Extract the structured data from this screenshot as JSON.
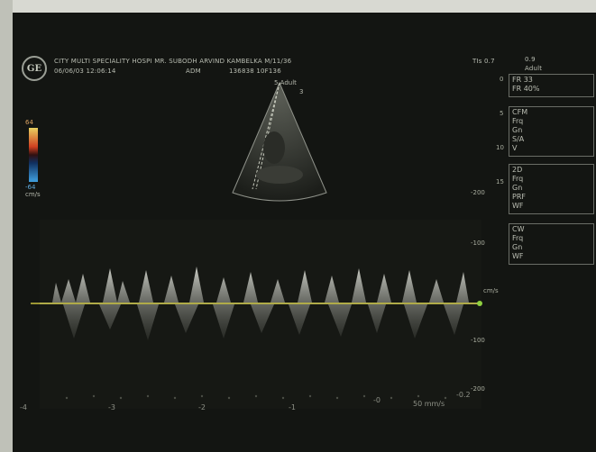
{
  "header": {
    "line1": "CITY MULTI SPECIALITY HOSPI  MR. SUBODH ARVIND KAMBELKA  M/11/36",
    "line2": "06/06/03  12:06:14",
    "line3": "ADM",
    "line4": "136838  10F136",
    "tis_label": "TIs 0.7",
    "mi_label": "0.9",
    "cardiac_label": "Adult"
  },
  "logo": {
    "text": "GE"
  },
  "probe": {
    "label": "5 Adult",
    "sublabel": "3"
  },
  "color_scale": {
    "top": "64",
    "bottom": "-64",
    "unit": "cm/s"
  },
  "depth_ticks": [
    "0",
    "5",
    "10",
    "15"
  ],
  "side_panel": {
    "box1": {
      "title": "FR",
      "rows": [
        "FR 33",
        "FR 40%"
      ]
    },
    "box2": {
      "title": "CFM",
      "rows": [
        "CFM",
        "Frq",
        "Gn",
        "S/A",
        "V"
      ]
    },
    "box3": {
      "title": "2D",
      "rows": [
        "2D",
        "Frq",
        "Gn",
        "PRF",
        "WF"
      ]
    },
    "box4": {
      "title": "CW",
      "rows": [
        "CW",
        "Frq",
        "Gn",
        "WF"
      ]
    }
  },
  "velocity_scale": [
    "-200",
    "-100",
    "cm/s",
    "-100",
    "-200"
  ],
  "time_axis": [
    "-4",
    "-3",
    "-2",
    "-1",
    "-0",
    "-0.2"
  ],
  "sweep_label": "50 mm/s",
  "colors": {
    "baseline": "#c9c240",
    "screen": "#131512"
  }
}
